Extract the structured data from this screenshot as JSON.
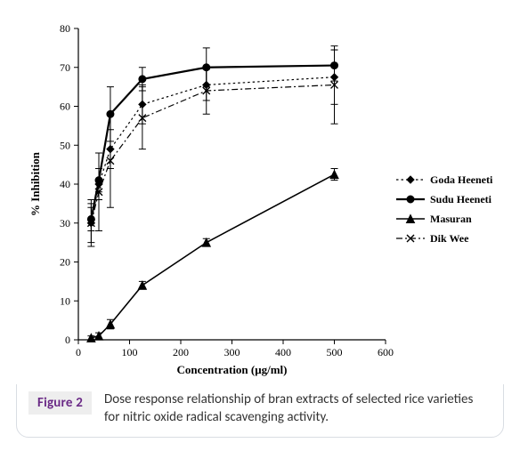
{
  "figure": {
    "badge": "Figure 2",
    "caption": "Dose response relationship of bran extracts of selected rice varieties for nitric oxide radical scavenging activity."
  },
  "chart": {
    "type": "line",
    "xlabel": "Concentration (μg/ml)",
    "ylabel": "% Inhibition",
    "label_fontsize": 13,
    "tick_fontsize": 12,
    "font_family": "Times New Roman",
    "background_color": "#ffffff",
    "axis_color": "#000000",
    "panel_border_color": "#d9dde3",
    "xlim": [
      0,
      600
    ],
    "x_ticks": [
      0,
      100,
      200,
      300,
      400,
      500,
      600
    ],
    "ylim": [
      0,
      80
    ],
    "y_ticks": [
      0,
      10,
      20,
      30,
      40,
      50,
      60,
      70,
      80
    ],
    "grid": false,
    "x_values": [
      25,
      40,
      62.5,
      125,
      250,
      500
    ],
    "series": [
      {
        "name": "Goda Heeneti",
        "y": [
          30,
          40,
          49,
          60.5,
          65.5,
          67.5
        ],
        "err": [
          5,
          4,
          5,
          5,
          4,
          7
        ],
        "color": "#000000",
        "line_width": 1.2,
        "dash": "2.5 3",
        "marker": "diamond",
        "marker_size": 8,
        "marker_fill": "#000000"
      },
      {
        "name": "Sudu Heeneti",
        "y": [
          31,
          41,
          58,
          67,
          70,
          70.5
        ],
        "err": [
          3,
          3,
          7,
          3,
          5,
          4
        ],
        "color": "#000000",
        "line_width": 2.2,
        "dash": "",
        "marker": "circle",
        "marker_size": 8,
        "marker_fill": "#000000"
      },
      {
        "name": "Masuran",
        "y": [
          0.5,
          1,
          4,
          14,
          25,
          42.5
        ],
        "err": [
          0.5,
          0.8,
          1.2,
          1,
          1,
          1.5
        ],
        "color": "#000000",
        "line_width": 1.6,
        "dash": "",
        "marker": "triangle",
        "marker_size": 9,
        "marker_fill": "#000000"
      },
      {
        "name": "Dik Wee",
        "y": [
          30,
          38,
          46,
          57,
          64,
          65.5
        ],
        "err": [
          6,
          10,
          12,
          8,
          6,
          10
        ],
        "color": "#000000",
        "line_width": 1.2,
        "dash": "7 3 2 3",
        "marker": "x",
        "marker_size": 8,
        "marker_fill": "#000000"
      }
    ],
    "legend": {
      "position": "right",
      "fontsize": 12,
      "items": [
        "Goda Heeneti",
        "Sudu Heeneti",
        "Masuran",
        "Dik Wee"
      ]
    }
  }
}
